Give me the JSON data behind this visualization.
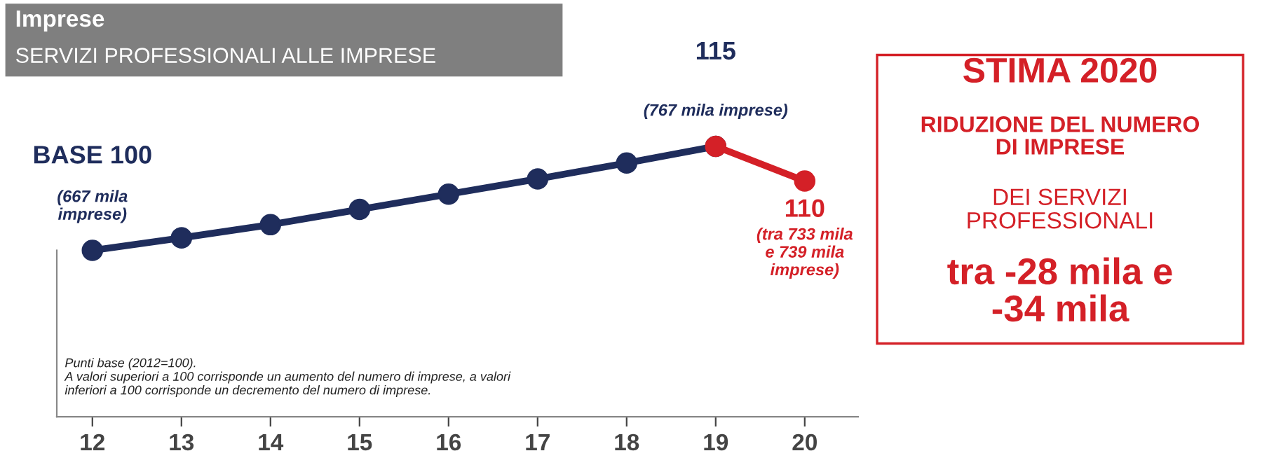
{
  "chart_data": {
    "type": "line",
    "title": "Imprese",
    "subtitle": "SERVIZI PROFESSIONALI ALLE IMPRESE",
    "x": [
      12,
      13,
      14,
      15,
      16,
      17,
      18,
      19,
      20
    ],
    "xlim": [
      11.6,
      20.6
    ],
    "xticks": [
      12,
      13,
      14,
      15,
      16,
      17,
      18,
      19,
      20
    ],
    "tick_labels": "x",
    "grid": false,
    "legend": false,
    "marker": "circle",
    "line_style": "solid",
    "series": [
      {
        "color": "#1f2d5c",
        "values": [
          100,
          101.8,
          103.7,
          105.9,
          108.1,
          110.3,
          112.6,
          115,
          null
        ],
        "value_labels": [
          "BASE 100",
          null,
          null,
          null,
          null,
          null,
          null,
          "115",
          null
        ]
      },
      {
        "color": "#d42027",
        "values": [
          null,
          null,
          null,
          null,
          null,
          null,
          null,
          115,
          110
        ],
        "value_labels": [
          null,
          null,
          null,
          null,
          null,
          null,
          null,
          null,
          "110"
        ]
      }
    ],
    "annotations": [
      {
        "text": "(667 mila\nimprese)",
        "x": 12,
        "y": 100
      },
      {
        "text": "(767 mila imprese)",
        "x": 19,
        "y": 115
      },
      {
        "text": "(tra 733 mila\ne 739 mila\nimprese)",
        "x": 20,
        "y": 110
      },
      "Punti base (2012=100).\nA valori superiori a 100 corrisponde un aumento del numero di imprese, a valori\ninferiori a 100 corrisponde un decremento del numero di imprese.",
      "STIMA 2020",
      "RIDUZIONE DEL NUMERO\nDI IMPRESE",
      "DEI SERVIZI\nPROFESSIONALI",
      "tra -28 mila e\n-34 mila"
    ]
  }
}
